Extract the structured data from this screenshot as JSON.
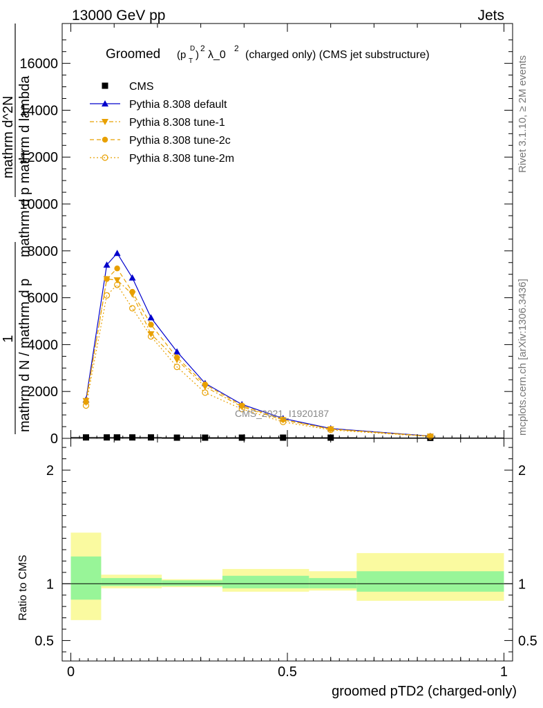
{
  "header": {
    "left": "13000 GeV pp",
    "right": "Jets"
  },
  "side": {
    "rivet": "Rivet 3.1.10, ≥ 2M events",
    "mcplots": "mcplots.cern.ch [arXiv:1306.3436]"
  },
  "watermark": "CMS_2021_I1920187",
  "chart_data": {
    "type": "line",
    "title": "Groomed (p_T^D)^2 λ_0^2 (charged only) (CMS jet substructure)",
    "title_parts": {
      "prefix": "Groomed",
      "p": "(p",
      "sup_d": "D",
      "sub_t": "T",
      "paren": ")",
      "sup_2": "2",
      "lambda": "λ_0",
      "sup_2b": "2",
      "rest": "(charged only) (CMS jet substructure)"
    },
    "xlabel": "groomed pTD2 (charged-only)",
    "ylabel": {
      "numerator_1": "1",
      "denominator_1": "mathrm d N / mathrm d p",
      "numerator_2": "mathrm d^2N",
      "denominator_2": "mathrm d p mathrm d lambda"
    },
    "ratio_ylabel": "Ratio to CMS",
    "xlim": [
      -0.02,
      1.02
    ],
    "ylim": [
      0,
      17700
    ],
    "ratio_ylim": [
      0.32,
      2.28
    ],
    "x_ticks": [
      {
        "v": 0,
        "label": "0"
      },
      {
        "v": 0.5,
        "label": "0.5"
      },
      {
        "v": 1,
        "label": "1"
      }
    ],
    "y_ticks": [
      {
        "v": 0,
        "label": "0"
      },
      {
        "v": 2000,
        "label": "2000"
      },
      {
        "v": 4000,
        "label": "4000"
      },
      {
        "v": 6000,
        "label": "6000"
      },
      {
        "v": 8000,
        "label": "8000"
      },
      {
        "v": 10000,
        "label": "10000"
      },
      {
        "v": 12000,
        "label": "12000"
      },
      {
        "v": 14000,
        "label": "14000"
      },
      {
        "v": 16000,
        "label": "16000"
      }
    ],
    "ratio_ticks": [
      {
        "v": 0.5,
        "label": "0.5"
      },
      {
        "v": 1,
        "label": "1"
      },
      {
        "v": 2,
        "label": "2"
      }
    ],
    "x": [
      0.035,
      0.083,
      0.107,
      0.142,
      0.185,
      0.245,
      0.31,
      0.395,
      0.49,
      0.6,
      0.83
    ],
    "bins": [
      [
        0.0,
        0.07
      ],
      [
        0.07,
        0.095
      ],
      [
        0.095,
        0.12
      ],
      [
        0.12,
        0.165
      ],
      [
        0.165,
        0.21
      ],
      [
        0.21,
        0.28
      ],
      [
        0.28,
        0.35
      ],
      [
        0.35,
        0.44
      ],
      [
        0.44,
        0.55
      ],
      [
        0.55,
        0.66
      ],
      [
        0.66,
        1.0
      ]
    ],
    "series": [
      {
        "name": "CMS",
        "style": "data",
        "color": "#000000",
        "values": [
          40,
          40,
          40,
          40,
          40,
          30,
          30,
          30,
          30,
          30,
          20
        ]
      },
      {
        "name": "Pythia 8.308 default",
        "style": "triangle-up",
        "color": "#0000cc",
        "dash": "",
        "values": [
          1650,
          7400,
          7900,
          6850,
          5150,
          3700,
          2350,
          1450,
          850,
          420,
          95
        ]
      },
      {
        "name": "Pythia 8.308 tune-1",
        "style": "triangle-down",
        "color": "#e8a000",
        "dash": "6,3,2,3",
        "values": [
          1600,
          6800,
          6750,
          6150,
          4450,
          3350,
          2200,
          1350,
          780,
          390,
          85
        ]
      },
      {
        "name": "Pythia 8.308 tune-2c",
        "style": "circle-filled",
        "color": "#e8a000",
        "dash": "6,4",
        "values": [
          1550,
          6800,
          7250,
          6250,
          4850,
          3450,
          2300,
          1400,
          800,
          400,
          90
        ]
      },
      {
        "name": "Pythia 8.308 tune-2m",
        "style": "circle-open",
        "color": "#e8a000",
        "dash": "2,3",
        "values": [
          1400,
          6100,
          6550,
          5550,
          4350,
          3050,
          1950,
          1250,
          700,
          360,
          80
        ]
      }
    ],
    "ratio_band": {
      "bins": [
        [
          0.0,
          0.07
        ],
        [
          0.07,
          0.21
        ],
        [
          0.21,
          0.35
        ],
        [
          0.35,
          0.55
        ],
        [
          0.55,
          0.66
        ],
        [
          0.66,
          1.0
        ]
      ],
      "stat": [
        [
          0.86,
          1.24
        ],
        [
          0.98,
          1.05
        ],
        [
          0.98,
          1.03
        ],
        [
          0.96,
          1.07
        ],
        [
          0.96,
          1.05
        ],
        [
          0.93,
          1.11
        ]
      ],
      "total": [
        [
          0.68,
          1.45
        ],
        [
          0.96,
          1.08
        ],
        [
          0.97,
          1.04
        ],
        [
          0.93,
          1.13
        ],
        [
          0.94,
          1.11
        ],
        [
          0.85,
          1.27
        ]
      ],
      "colors": {
        "stat": "#98f598",
        "total": "#fafaa0"
      }
    }
  }
}
